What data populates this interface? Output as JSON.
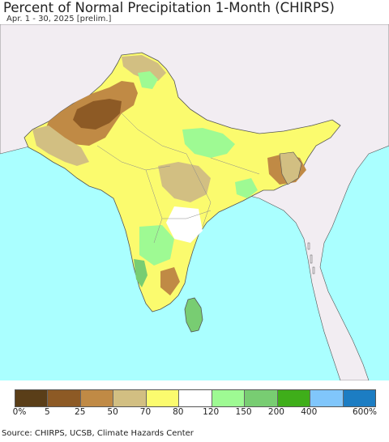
{
  "title": "Percent of Normal Precipitation 1-Month (CHIRPS)",
  "subtitle": "Apr. 1 - 30, 2025 [prelim.]",
  "source": "Source: CHIRPS, UCSB, Climate Hazards Center",
  "colors": {
    "ocean": "#aaffff",
    "outside_land": "#f2edf2",
    "border": "#555555"
  },
  "legend": {
    "swatches": [
      "#5a3e18",
      "#8d5a25",
      "#c08a45",
      "#d2bf82",
      "#fbfb6e",
      "#ffffff",
      "#9efa93",
      "#78cd72",
      "#3fae1a",
      "#80c6fb",
      "#1c7dc3"
    ],
    "ticks": [
      "0%",
      "5",
      "25",
      "50",
      "70",
      "80",
      "120",
      "150",
      "200",
      "400",
      "600%"
    ]
  }
}
